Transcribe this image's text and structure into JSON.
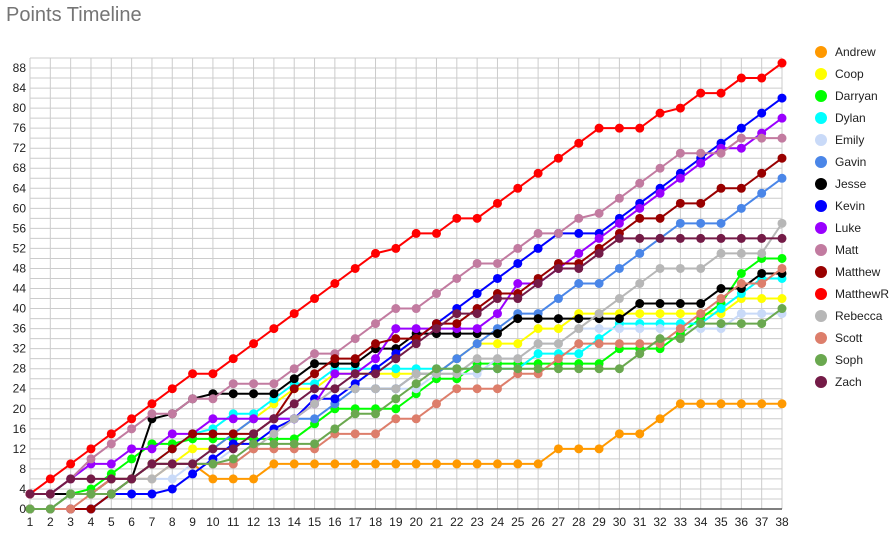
{
  "chart_data": {
    "type": "line",
    "title": "Points Timeline",
    "xlabel": "",
    "ylabel": "",
    "x": [
      1,
      2,
      3,
      4,
      5,
      6,
      7,
      8,
      9,
      10,
      11,
      12,
      13,
      14,
      15,
      16,
      17,
      18,
      19,
      20,
      21,
      22,
      23,
      24,
      25,
      26,
      27,
      28,
      29,
      30,
      31,
      32,
      33,
      34,
      35,
      36,
      37,
      38
    ],
    "xlim": [
      1,
      38
    ],
    "ylim": [
      0,
      90
    ],
    "yticks": [
      0,
      4,
      8,
      12,
      16,
      20,
      24,
      28,
      32,
      36,
      40,
      44,
      48,
      52,
      56,
      60,
      64,
      68,
      72,
      76,
      80,
      84,
      88
    ],
    "grid": true,
    "legend": "right",
    "series": [
      {
        "name": "Andrew",
        "color": "#ff9900",
        "values": [
          0,
          0,
          3,
          3,
          6,
          6,
          6,
          9,
          9,
          6,
          6,
          6,
          9,
          9,
          9,
          9,
          9,
          9,
          9,
          9,
          9,
          9,
          9,
          9,
          9,
          9,
          12,
          12,
          12,
          15,
          15,
          18,
          21,
          21,
          21,
          21,
          21,
          21
        ]
      },
      {
        "name": "Coop",
        "color": "#ffff00",
        "values": [
          0,
          0,
          3,
          3,
          6,
          6,
          9,
          9,
          12,
          12,
          15,
          18,
          21,
          24,
          24,
          27,
          27,
          27,
          27,
          27,
          27,
          30,
          33,
          33,
          33,
          36,
          36,
          39,
          39,
          39,
          39,
          39,
          39,
          39,
          39,
          42,
          42,
          42
        ]
      },
      {
        "name": "Darryan",
        "color": "#00ff00",
        "values": [
          0,
          0,
          3,
          4,
          7,
          10,
          13,
          13,
          14,
          14,
          14,
          14,
          14,
          14,
          17,
          20,
          20,
          20,
          20,
          23,
          26,
          26,
          29,
          29,
          29,
          29,
          29,
          29,
          29,
          32,
          32,
          32,
          35,
          38,
          41,
          47,
          50,
          50
        ]
      },
      {
        "name": "Dylan",
        "color": "#00ffff",
        "values": [
          0,
          0,
          3,
          3,
          6,
          6,
          9,
          12,
          15,
          16,
          19,
          19,
          22,
          25,
          25,
          28,
          28,
          28,
          28,
          28,
          28,
          28,
          28,
          28,
          28,
          31,
          31,
          31,
          34,
          37,
          37,
          37,
          37,
          37,
          40,
          43,
          46,
          46
        ]
      },
      {
        "name": "Emily",
        "color": "#c9daf8",
        "values": [
          0,
          0,
          0,
          0,
          3,
          6,
          6,
          6,
          9,
          9,
          12,
          15,
          18,
          21,
          24,
          24,
          24,
          24,
          24,
          24,
          27,
          27,
          27,
          30,
          30,
          33,
          33,
          36,
          36,
          36,
          36,
          36,
          36,
          36,
          36,
          39,
          39,
          39
        ]
      },
      {
        "name": "Gavin",
        "color": "#4a86e8",
        "values": [
          0,
          0,
          0,
          0,
          3,
          6,
          9,
          9,
          9,
          12,
          15,
          18,
          18,
          18,
          18,
          21,
          24,
          24,
          24,
          27,
          27,
          30,
          33,
          36,
          39,
          39,
          42,
          45,
          45,
          48,
          51,
          54,
          57,
          57,
          57,
          60,
          63,
          66
        ]
      },
      {
        "name": "Jesse",
        "color": "#000000",
        "values": [
          3,
          3,
          3,
          3,
          6,
          6,
          18,
          19,
          22,
          23,
          23,
          23,
          23,
          26,
          29,
          29,
          29,
          32,
          32,
          35,
          35,
          35,
          35,
          35,
          38,
          38,
          38,
          38,
          38,
          38,
          41,
          41,
          41,
          41,
          44,
          44,
          47,
          47
        ]
      },
      {
        "name": "Kevin",
        "color": "#0000ff",
        "values": [
          0,
          0,
          0,
          0,
          3,
          3,
          3,
          4,
          7,
          10,
          13,
          13,
          16,
          18,
          22,
          22,
          25,
          28,
          31,
          34,
          37,
          40,
          43,
          46,
          49,
          52,
          55,
          55,
          55,
          58,
          61,
          64,
          67,
          70,
          73,
          76,
          79,
          82
        ]
      },
      {
        "name": "Luke",
        "color": "#9900ff",
        "values": [
          3,
          3,
          6,
          9,
          9,
          12,
          12,
          15,
          15,
          18,
          18,
          18,
          18,
          18,
          21,
          27,
          27,
          30,
          36,
          36,
          36,
          36,
          36,
          39,
          45,
          45,
          48,
          51,
          54,
          57,
          60,
          63,
          66,
          69,
          72,
          72,
          75,
          78
        ]
      },
      {
        "name": "Matt",
        "color": "#c27ba0",
        "values": [
          3,
          3,
          6,
          10,
          13,
          16,
          19,
          19,
          22,
          22,
          25,
          25,
          25,
          28,
          31,
          31,
          34,
          37,
          40,
          40,
          43,
          46,
          49,
          49,
          52,
          55,
          55,
          58,
          59,
          62,
          65,
          68,
          71,
          71,
          71,
          74,
          74,
          74
        ]
      },
      {
        "name": "Matthew",
        "color": "#990000",
        "values": [
          0,
          0,
          0,
          0,
          3,
          6,
          9,
          12,
          15,
          15,
          15,
          15,
          18,
          24,
          27,
          30,
          30,
          33,
          34,
          34,
          37,
          37,
          40,
          43,
          43,
          46,
          49,
          49,
          52,
          55,
          58,
          58,
          61,
          61,
          64,
          64,
          67,
          70
        ]
      },
      {
        "name": "MatthewR",
        "color": "#ff0000",
        "values": [
          3,
          6,
          9,
          12,
          15,
          18,
          21,
          24,
          27,
          27,
          30,
          33,
          36,
          39,
          42,
          45,
          48,
          51,
          52,
          55,
          55,
          58,
          58,
          61,
          64,
          67,
          70,
          73,
          76,
          76,
          76,
          79,
          80,
          83,
          83,
          86,
          86,
          89
        ]
      },
      {
        "name": "Rebecca",
        "color": "#b7b7b7",
        "values": [
          0,
          0,
          3,
          3,
          6,
          6,
          6,
          9,
          9,
          9,
          9,
          12,
          15,
          18,
          21,
          24,
          24,
          24,
          24,
          27,
          27,
          27,
          30,
          30,
          30,
          33,
          33,
          36,
          39,
          42,
          45,
          48,
          48,
          48,
          51,
          51,
          51,
          57
        ]
      },
      {
        "name": "Scott",
        "color": "#dd7e6b",
        "values": [
          0,
          0,
          0,
          3,
          6,
          6,
          9,
          9,
          9,
          9,
          9,
          12,
          12,
          12,
          12,
          15,
          15,
          15,
          18,
          18,
          21,
          24,
          24,
          24,
          27,
          27,
          30,
          33,
          33,
          33,
          33,
          33,
          36,
          39,
          42,
          45,
          45,
          48
        ]
      },
      {
        "name": "Soph",
        "color": "#6aa84f",
        "values": [
          0,
          0,
          3,
          3,
          3,
          6,
          9,
          9,
          9,
          9,
          10,
          13,
          13,
          13,
          13,
          16,
          19,
          19,
          22,
          25,
          28,
          28,
          28,
          28,
          28,
          28,
          28,
          28,
          28,
          28,
          31,
          34,
          34,
          37,
          37,
          37,
          37,
          40
        ]
      },
      {
        "name": "Zach",
        "color": "#741b47",
        "values": [
          3,
          3,
          6,
          6,
          6,
          6,
          9,
          9,
          9,
          12,
          12,
          15,
          18,
          21,
          24,
          24,
          27,
          27,
          30,
          33,
          36,
          39,
          39,
          42,
          42,
          45,
          48,
          48,
          51,
          54,
          54,
          54,
          54,
          54,
          54,
          54,
          54,
          54
        ]
      }
    ]
  }
}
